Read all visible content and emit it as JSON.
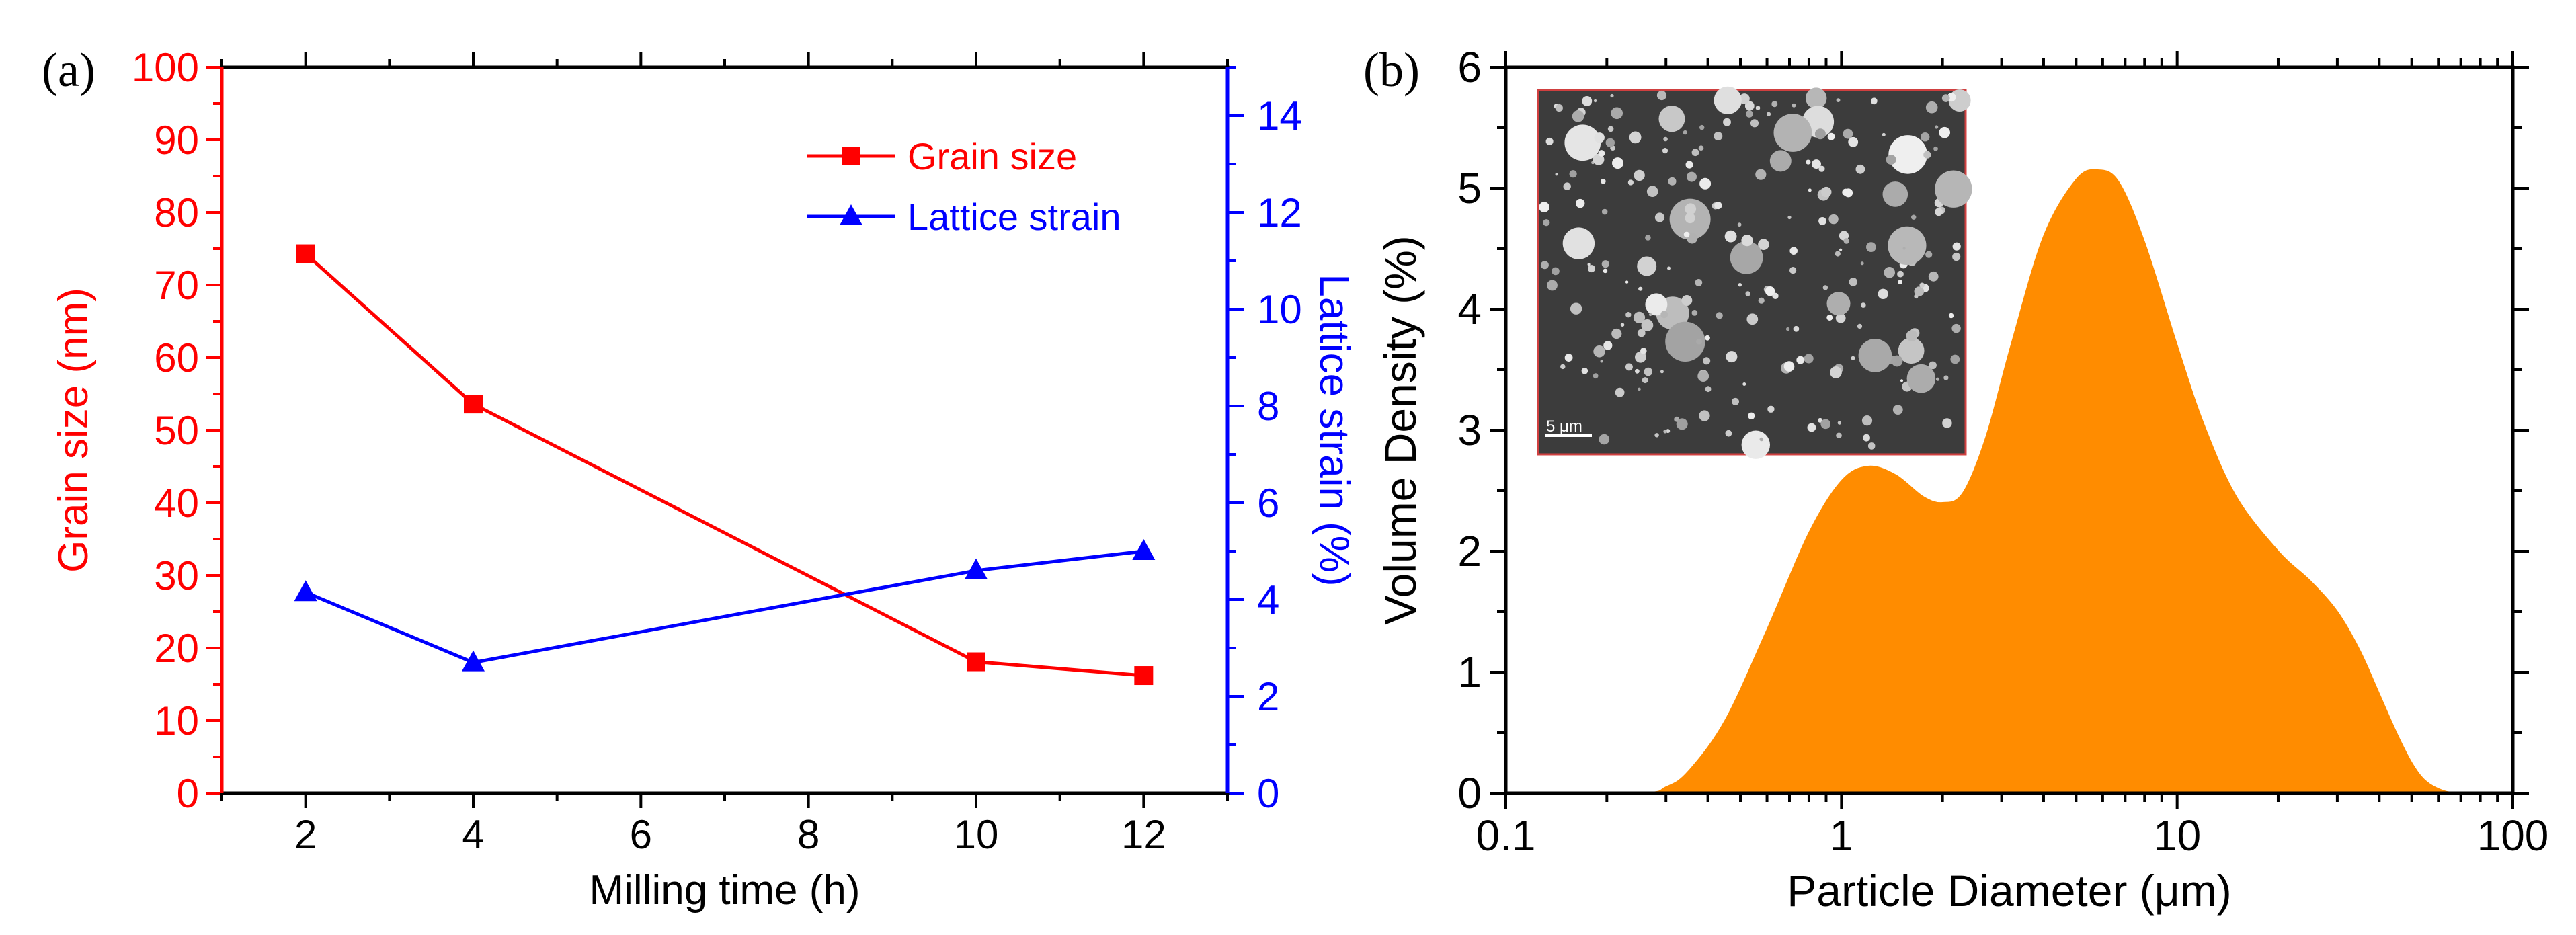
{
  "colors": {
    "grain": "#ff0000",
    "strain": "#0000ff",
    "fill": "#ff8c00",
    "axis": "#000000"
  },
  "chart_data": [
    {
      "panel_label": "(a)",
      "type": "line",
      "xlabel": "Milling time (h)",
      "xlim": [
        1,
        13
      ],
      "xticks": [
        2,
        4,
        6,
        8,
        10,
        12
      ],
      "ylabel_left": "Grain size (nm)",
      "ylim_left": [
        0,
        100
      ],
      "yticks_left": [
        0,
        10,
        20,
        30,
        40,
        50,
        60,
        70,
        80,
        90,
        100
      ],
      "ylabel_right": "Lattice strain (%)",
      "ylim_right": [
        0,
        15
      ],
      "yticks_right": [
        0,
        2,
        4,
        6,
        8,
        10,
        12,
        14
      ],
      "legend_position": "top-right",
      "series": [
        {
          "name": "Grain size",
          "axis": "left",
          "marker": "square",
          "x": [
            2,
            4,
            10,
            12
          ],
          "values": [
            74.3,
            53.6,
            18.1,
            16.2
          ]
        },
        {
          "name": "Lattice strain",
          "axis": "right",
          "marker": "triangle",
          "x": [
            2,
            4,
            10,
            12
          ],
          "values": [
            4.15,
            2.7,
            4.6,
            5.0
          ]
        }
      ]
    },
    {
      "panel_label": "(b)",
      "type": "area",
      "xlabel": "Particle Diameter (μm)",
      "xscale": "log",
      "xlim": [
        0.1,
        100
      ],
      "xticks": [
        0.1,
        1,
        10,
        100
      ],
      "xtick_labels": [
        "0.1",
        "1",
        "10",
        "100"
      ],
      "ylabel": "Volume Density (%)",
      "ylim": [
        0,
        6
      ],
      "yticks": [
        0,
        1,
        2,
        3,
        4,
        5,
        6
      ],
      "inset": {
        "description_label": "5 μm",
        "position": "top-left"
      },
      "series": [
        {
          "name": "Volume density",
          "x": [
            0.1,
            0.25,
            0.3,
            0.35,
            0.45,
            0.6,
            0.8,
            1.0,
            1.2,
            1.45,
            1.75,
            2.0,
            2.3,
            2.7,
            3.2,
            4.0,
            5.0,
            5.8,
            6.7,
            8.0,
            10,
            12,
            15,
            20,
            25,
            30,
            35,
            40,
            45,
            50,
            55,
            62,
            70,
            80,
            100
          ],
          "values": [
            0,
            0,
            0.05,
            0.18,
            0.6,
            1.35,
            2.15,
            2.58,
            2.7,
            2.63,
            2.45,
            2.4,
            2.48,
            2.95,
            3.7,
            4.6,
            5.07,
            5.15,
            5.05,
            4.55,
            3.7,
            3.05,
            2.45,
            2.0,
            1.75,
            1.5,
            1.18,
            0.82,
            0.5,
            0.25,
            0.1,
            0.02,
            0,
            0,
            0
          ]
        }
      ]
    }
  ]
}
